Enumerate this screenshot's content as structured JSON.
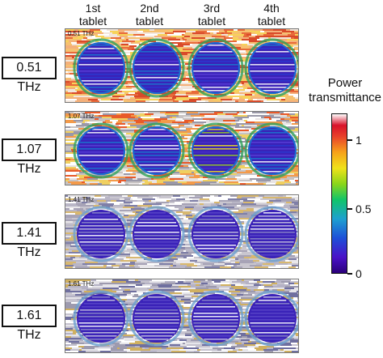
{
  "columns": [
    "1st\ntablet",
    "2nd\ntablet",
    "3rd\ntablet",
    "4th\ntablet"
  ],
  "rows": [
    {
      "label": "0.51 THz",
      "tag": "0.51 THz"
    },
    {
      "label": "1.07 THz",
      "tag": "1.07 THz"
    },
    {
      "label": "1.41 THz",
      "tag": "1.41 THz"
    },
    {
      "label": "1.61 THz",
      "tag": "1.61 THz"
    }
  ],
  "colorbar": {
    "title": "Power\ntransmittance",
    "ticks": [
      "1",
      "0.5",
      "0"
    ]
  }
}
